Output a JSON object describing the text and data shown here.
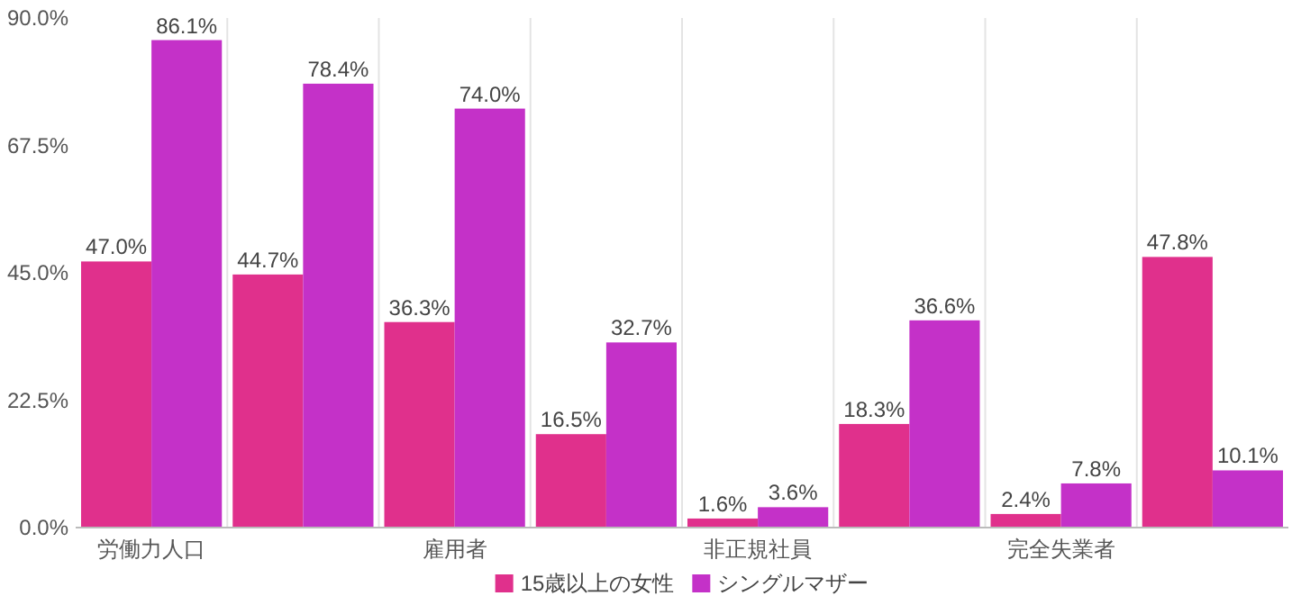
{
  "chart_data": {
    "type": "bar",
    "categories": [
      "労働力人口",
      null,
      "雇用者",
      null,
      "非正規社員",
      null,
      "完全失業者",
      null
    ],
    "series": [
      {
        "name": "15歳以上の女性",
        "color": "#e0308c",
        "values": [
          47.0,
          44.7,
          36.3,
          16.5,
          1.6,
          18.3,
          2.4,
          47.8
        ],
        "value_labels": [
          "47.0%",
          "44.7%",
          "36.3%",
          "16.5%",
          "1.6%",
          "18.3%",
          "2.4%",
          "47.8%"
        ]
      },
      {
        "name": "シングルマザー",
        "color": "#c431c8",
        "values": [
          86.1,
          78.4,
          74.0,
          32.7,
          3.6,
          36.6,
          7.8,
          10.1
        ],
        "value_labels": [
          "86.1%",
          "78.4%",
          "74.0%",
          "32.7%",
          "3.6%",
          "36.6%",
          "7.8%",
          "10.1%"
        ]
      }
    ],
    "ylim": [
      0,
      90
    ],
    "yticks": [
      {
        "value": 0,
        "label": "0.0%"
      },
      {
        "value": 22.5,
        "label": "22.5%"
      },
      {
        "value": 45,
        "label": "45.0%"
      },
      {
        "value": 67.5,
        "label": "67.5%"
      },
      {
        "value": 90,
        "label": "90.0%"
      }
    ],
    "grid": "x",
    "legend": "bottom"
  }
}
